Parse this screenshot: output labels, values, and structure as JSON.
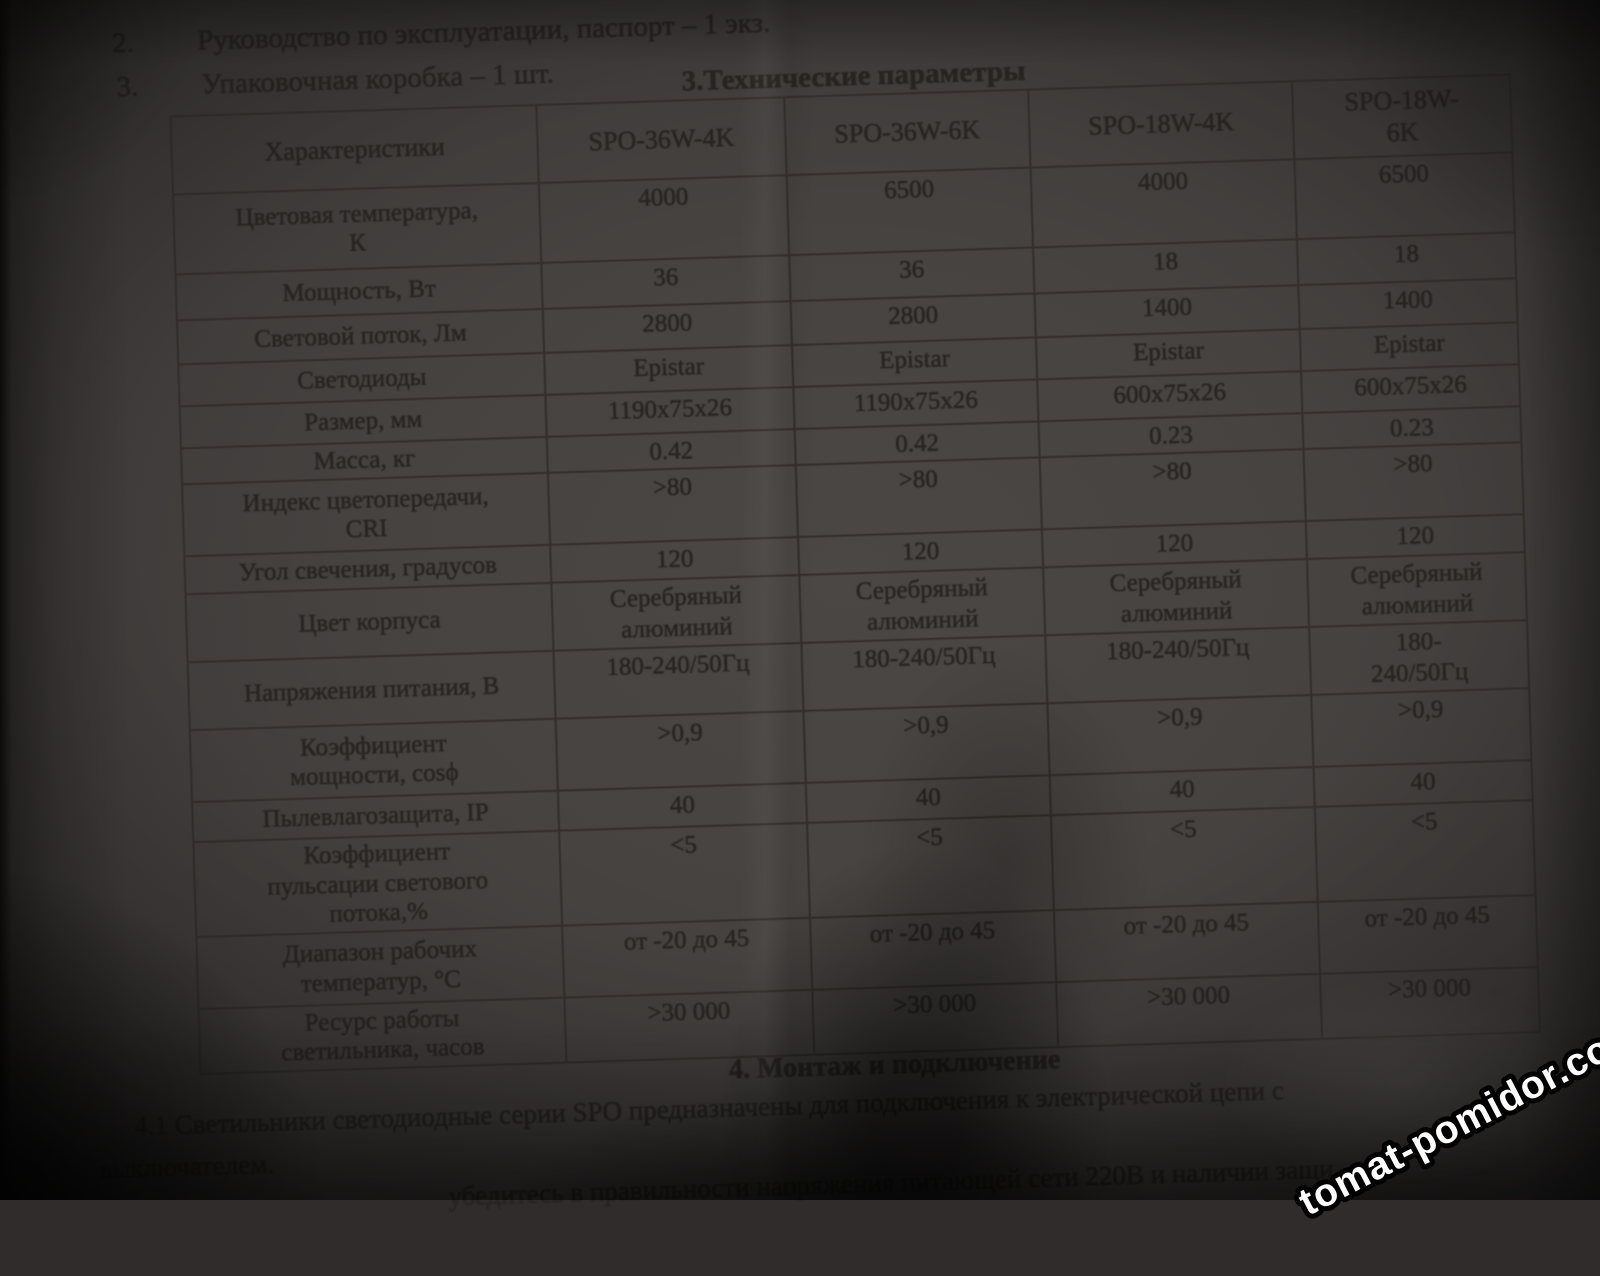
{
  "list_items": [
    {
      "number": "2.",
      "text": "Руководство по эксплуатации, паспорт – 1 экз."
    },
    {
      "number": "3.",
      "text": "Упаковочная коробка – 1 шт."
    }
  ],
  "table_title": "3.Технические параметры",
  "table": {
    "header": [
      "Характеристики",
      "SPO-36W-4K",
      "SPO-36W-6K",
      "SPO-18W-4K",
      "SPO-18W-\n6K"
    ],
    "rows": [
      {
        "label": "Цветовая температура,\nК",
        "values": [
          "4000",
          "6500",
          "4000",
          "6500"
        ]
      },
      {
        "label": "Мощность, Вт",
        "values": [
          "36",
          "36",
          "18",
          "18"
        ]
      },
      {
        "label": "Световой поток, Лм",
        "values": [
          "2800",
          "2800",
          "1400",
          "1400"
        ]
      },
      {
        "label": "Светодиоды",
        "values": [
          "Epistar",
          "Epistar",
          "Epistar",
          "Epistar"
        ]
      },
      {
        "label": "Размер, мм",
        "values": [
          "1190х75х26",
          "1190х75х26",
          "600х75х26",
          "600х75х26"
        ]
      },
      {
        "label": "Масса, кг",
        "values": [
          "0.42",
          "0.42",
          "0.23",
          "0.23"
        ]
      },
      {
        "label": "Индекс цветопередачи,\nCRI",
        "values": [
          ">80",
          ">80",
          ">80",
          ">80"
        ]
      },
      {
        "label": "Угол свечения, градусов",
        "values": [
          "120",
          "120",
          "120",
          "120"
        ]
      },
      {
        "label": "Цвет корпуса",
        "values": [
          "Серебряный\nалюминий",
          "Серебряный\nалюминий",
          "Серебряный\nалюминий",
          "Серебряный\nалюминий"
        ]
      },
      {
        "label": "Напряжения питания, В",
        "values": [
          "180-240/50Гц",
          "180-240/50Гц",
          "180-240/50Гц",
          "180-\n240/50Гц"
        ]
      },
      {
        "label": "Коэффициент\nмощности, cosϕ",
        "values": [
          ">0,9",
          ">0,9",
          ">0,9",
          ">0,9"
        ]
      },
      {
        "label": "Пылевлагозащита, IP",
        "values": [
          "40",
          "40",
          "40",
          "40"
        ]
      },
      {
        "label": "Коэффициент\nпульсации светового\nпотока,%",
        "values": [
          "<5",
          "<5",
          "<5",
          "<5"
        ]
      },
      {
        "label": "Диапазон рабочих\nтемператур, °С",
        "values": [
          "от -20 до 45",
          "от -20 до 45",
          "от -20 до 45",
          "от -20 до 45"
        ]
      },
      {
        "label": "Ресурс работы\nсветильника, часов",
        "values": [
          ">30 000",
          ">30 000",
          ">30 000",
          ">30 000"
        ]
      }
    ]
  },
  "section4": {
    "heading": "4. Монтаж и подключение",
    "para_4_1": "4.1 Светильники светодиодные серии SPO предназначены для подключения к электрической цепи с",
    "para_4_1_cont": "выключателем.",
    "para_4_2_fragment": "убедитесь в правильности напряжения питающей сети 220В и наличии защи"
  },
  "watermark": "tomat-pomidor.com",
  "colors": {
    "paper": "#4b4745",
    "ink": "#282421",
    "table_line": "#322d2a",
    "watermark_fill": "#ffffff",
    "watermark_outline": "#000000"
  }
}
